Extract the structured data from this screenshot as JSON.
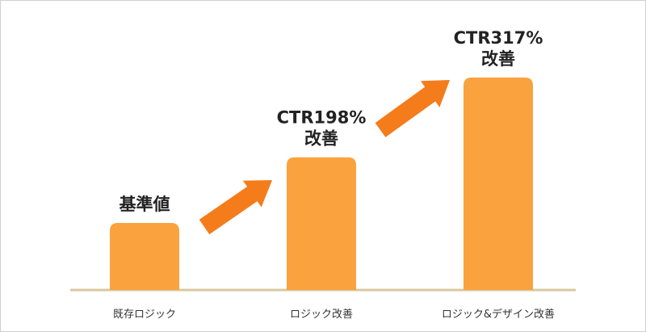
{
  "chart_data": {
    "type": "bar",
    "categories": [
      "既存ロジック",
      "ロジック改善",
      "ロジック&デザイン改善"
    ],
    "values": [
      100,
      198,
      317
    ],
    "bar_labels": [
      [
        "基準値"
      ],
      [
        "CTR198%",
        "改善"
      ],
      [
        "CTR317%",
        "改善"
      ]
    ],
    "title": "",
    "xlabel": "",
    "ylabel": "",
    "ylim": [
      0,
      317
    ],
    "grid": false,
    "axis": "x-only",
    "arrows": "between-bars"
  },
  "colors": {
    "bar": "#f9a23e",
    "arrow": "#f47c1b",
    "baseline": "#d9c8a0",
    "frame": "#cfcfcf"
  }
}
